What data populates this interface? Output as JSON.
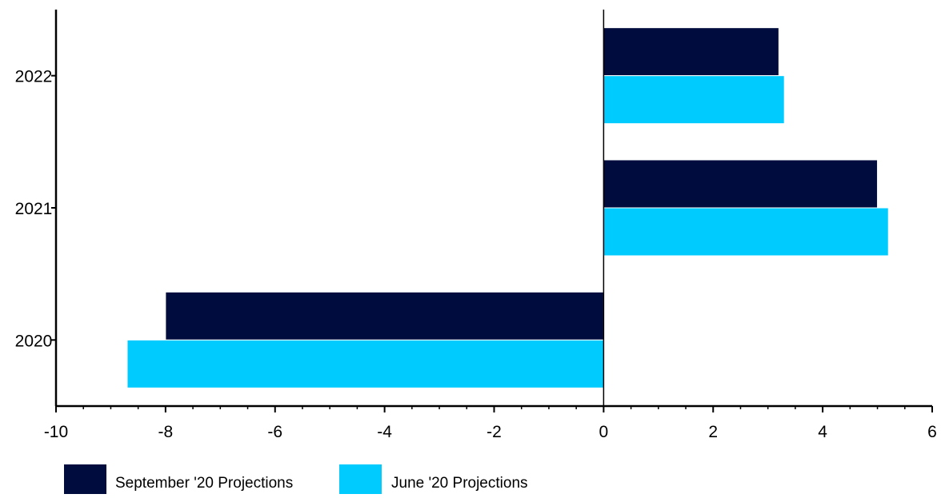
{
  "chart_data": {
    "type": "bar",
    "orientation": "horizontal",
    "title": "",
    "xlabel": "",
    "ylabel": "",
    "categories": [
      "2022",
      "2021",
      "2020"
    ],
    "series": [
      {
        "name": "September '20 Projections",
        "color": "#000c3d",
        "values": [
          3.2,
          5.0,
          -8.0
        ]
      },
      {
        "name": "June '20 Projections",
        "color": "#00cbff",
        "values": [
          3.3,
          5.2,
          -8.7
        ]
      }
    ],
    "xlim": [
      -10,
      6
    ],
    "x_ticks": [
      -10,
      -8,
      -6,
      -4,
      -2,
      0,
      2,
      4,
      6
    ],
    "grid": false,
    "legend_position": "bottom-left"
  }
}
